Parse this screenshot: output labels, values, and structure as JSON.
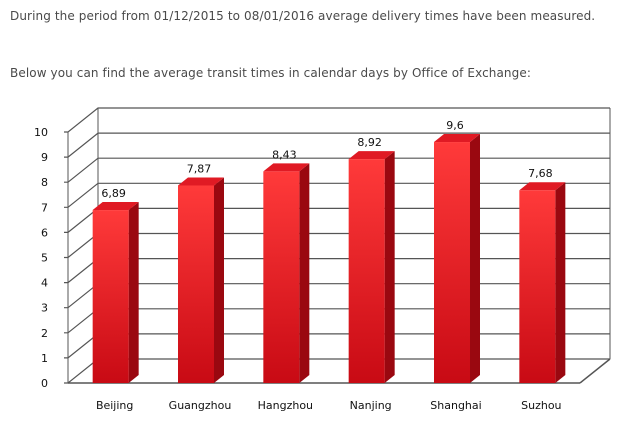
{
  "intro": {
    "line1": "During the period from 01/12/2015 to 08/01/2016 average delivery times have been measured.",
    "line2": "Below you can find the average transit times in calendar days by Office of Exchange:"
  },
  "colors": {
    "bar_front_top": "#ff3a3a",
    "bar_front_bottom": "#c80a14",
    "bar_side": "#9a0810",
    "bar_top": "#e01a24",
    "grid": "#555555"
  },
  "chart_data": {
    "type": "bar",
    "title": "",
    "xlabel": "",
    "ylabel": "",
    "categories": [
      "Beijing",
      "Guangzhou",
      "Hangzhou",
      "Nanjing",
      "Shanghai",
      "Suzhou"
    ],
    "values": [
      6.89,
      7.87,
      8.43,
      8.92,
      9.6,
      7.68
    ],
    "data_labels": [
      "6,89",
      "7,87",
      "8,43",
      "8,92",
      "9,6",
      "7,68"
    ],
    "ylim": [
      0,
      10
    ],
    "yticks": [
      "0",
      "1",
      "2",
      "3",
      "4",
      "5",
      "6",
      "7",
      "8",
      "9",
      "10"
    ],
    "grid": true,
    "legend": "none",
    "style": "3d"
  }
}
